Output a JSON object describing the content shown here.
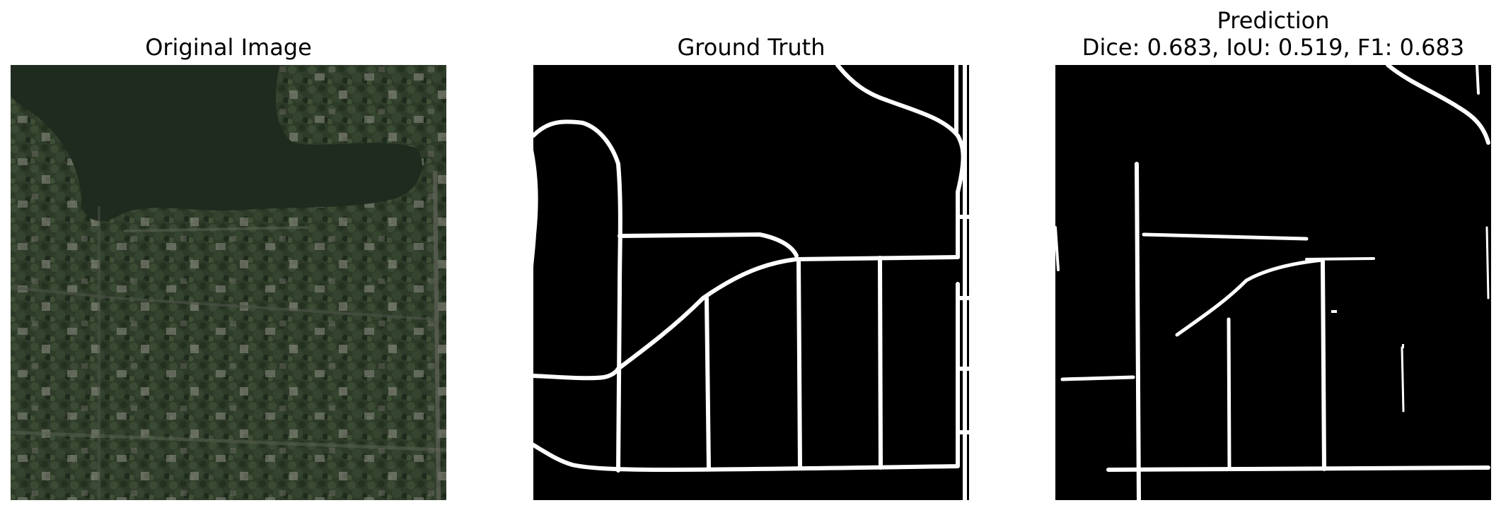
{
  "figure": {
    "panels": [
      {
        "id": "original",
        "title": "Original Image"
      },
      {
        "id": "ground-truth",
        "title": "Ground Truth"
      },
      {
        "id": "prediction",
        "title_line1": "Prediction",
        "title_line2": "Dice: 0.683, IoU: 0.519, F1: 0.683"
      }
    ],
    "metrics": {
      "dice": 0.683,
      "iou": 0.519,
      "f1": 0.683
    },
    "colors": {
      "background": "#ffffff",
      "mask_bg": "#000000",
      "road": "#ffffff",
      "water": "#1f2b1e",
      "vegetation": "#2f3e2a"
    }
  }
}
